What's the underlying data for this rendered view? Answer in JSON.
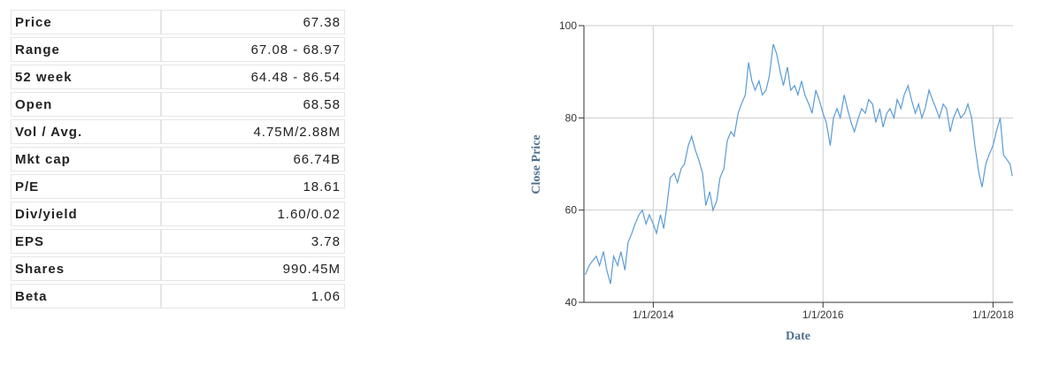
{
  "table": {
    "rows": [
      [
        "Price",
        "67.38"
      ],
      [
        "Range",
        "67.08 - 68.97"
      ],
      [
        "52 week",
        "64.48 - 86.54"
      ],
      [
        "Open",
        "68.58"
      ],
      [
        "Vol / Avg.",
        "4.75M/2.88M"
      ],
      [
        "Mkt cap",
        "66.74B"
      ],
      [
        "P/E",
        "18.61"
      ],
      [
        "Div/yield",
        "1.60/0.02"
      ],
      [
        "EPS",
        "3.78"
      ],
      [
        "Shares",
        "990.45M"
      ],
      [
        "Beta",
        "1.06"
      ]
    ]
  },
  "chart_data": {
    "type": "line",
    "x_label": "Date",
    "y_label": "Close Price",
    "color": "#5b9bd5",
    "grid": true,
    "x": [
      "2013-03-15",
      "2013-04-01",
      "2013-04-15",
      "2013-05-01",
      "2013-05-15",
      "2013-06-01",
      "2013-06-15",
      "2013-07-01",
      "2013-07-15",
      "2013-08-01",
      "2013-08-15",
      "2013-09-01",
      "2013-09-15",
      "2013-10-01",
      "2013-10-15",
      "2013-11-01",
      "2013-11-15",
      "2013-12-01",
      "2013-12-15",
      "2014-01-01",
      "2014-01-15",
      "2014-02-01",
      "2014-02-15",
      "2014-03-01",
      "2014-03-15",
      "2014-04-01",
      "2014-04-15",
      "2014-05-01",
      "2014-05-15",
      "2014-06-01",
      "2014-06-15",
      "2014-07-01",
      "2014-07-15",
      "2014-08-01",
      "2014-08-15",
      "2014-09-01",
      "2014-09-15",
      "2014-10-01",
      "2014-10-15",
      "2014-11-01",
      "2014-11-15",
      "2014-12-01",
      "2014-12-15",
      "2015-01-01",
      "2015-01-15",
      "2015-02-01",
      "2015-02-15",
      "2015-03-01",
      "2015-03-15",
      "2015-04-01",
      "2015-04-15",
      "2015-05-01",
      "2015-05-15",
      "2015-06-01",
      "2015-06-15",
      "2015-07-01",
      "2015-07-15",
      "2015-08-01",
      "2015-08-15",
      "2015-09-01",
      "2015-09-15",
      "2015-10-01",
      "2015-10-15",
      "2015-11-01",
      "2015-11-15",
      "2015-12-01",
      "2015-12-15",
      "2016-01-01",
      "2016-01-15",
      "2016-02-01",
      "2016-02-15",
      "2016-03-01",
      "2016-03-15",
      "2016-04-01",
      "2016-04-15",
      "2016-05-01",
      "2016-05-15",
      "2016-06-01",
      "2016-06-15",
      "2016-07-01",
      "2016-07-15",
      "2016-08-01",
      "2016-08-15",
      "2016-09-01",
      "2016-09-15",
      "2016-10-01",
      "2016-10-15",
      "2016-11-01",
      "2016-11-15",
      "2016-12-01",
      "2016-12-15",
      "2017-01-01",
      "2017-01-15",
      "2017-02-01",
      "2017-02-15",
      "2017-03-01",
      "2017-03-15",
      "2017-04-01",
      "2017-04-15",
      "2017-05-01",
      "2017-05-15",
      "2017-06-01",
      "2017-06-15",
      "2017-07-01",
      "2017-07-15",
      "2017-08-01",
      "2017-08-15",
      "2017-09-01",
      "2017-09-15",
      "2017-10-01",
      "2017-10-15",
      "2017-11-01",
      "2017-11-15",
      "2017-12-01",
      "2017-12-15",
      "2018-01-01",
      "2018-01-15",
      "2018-02-01",
      "2018-02-15",
      "2018-03-01",
      "2018-03-15",
      "2018-03-25"
    ],
    "values": [
      46,
      48,
      49,
      50,
      48,
      51,
      47,
      44,
      50,
      48,
      51,
      47,
      53,
      55,
      57,
      59,
      60,
      57,
      59,
      57,
      55,
      59,
      56,
      61,
      67,
      68,
      66,
      69,
      70,
      74,
      76,
      73,
      71,
      68,
      61,
      64,
      60,
      62,
      67,
      69,
      75,
      77,
      76,
      81,
      83,
      85,
      92,
      88,
      86,
      88,
      85,
      86,
      89,
      96,
      94,
      90,
      87,
      91,
      86,
      87,
      85,
      88,
      85,
      83,
      81,
      86,
      84,
      81,
      79,
      74,
      80,
      82,
      80,
      85,
      82,
      79,
      77,
      80,
      82,
      81,
      84,
      83,
      79,
      82,
      78,
      81,
      82,
      80,
      84,
      82,
      85,
      87,
      84,
      81,
      83,
      80,
      82,
      86,
      84,
      82,
      80,
      83,
      82,
      77,
      80,
      82,
      80,
      81,
      83,
      80,
      74,
      68,
      65,
      70,
      72,
      74,
      77,
      80,
      72,
      71,
      70,
      67.38
    ],
    "xlim": [
      "2013-03-09",
      "2018-03-28"
    ],
    "xticks": [
      {
        "value": "2014-01-01",
        "label": "1/1/2014"
      },
      {
        "value": "2016-01-01",
        "label": "1/1/2016"
      },
      {
        "value": "2018-01-01",
        "label": "1/1/2018"
      }
    ],
    "ylim": [
      40,
      100
    ],
    "yticks": [
      40,
      60,
      80,
      100
    ]
  }
}
